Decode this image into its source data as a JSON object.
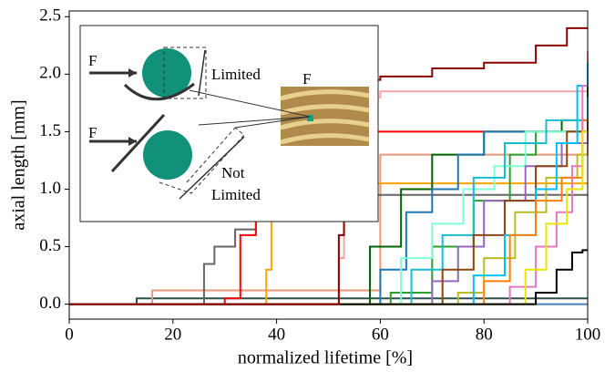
{
  "chart_data": {
    "type": "line",
    "step": "post",
    "x_label": "normalized lifetime [%]",
    "y_label": "axial length [mm]",
    "xlim": [
      0,
      100
    ],
    "ylim": [
      -0.13,
      2.55
    ],
    "xticks": [
      0,
      20,
      40,
      60,
      80,
      100
    ],
    "yticks": [
      {
        "value": 0,
        "label": "0.0"
      },
      {
        "value": 0.5,
        "label": "0.5"
      },
      {
        "value": 1,
        "label": "1.0"
      },
      {
        "value": 1.5,
        "label": "1.5"
      },
      {
        "value": 2,
        "label": "2.0"
      },
      {
        "value": 2.5,
        "label": "2.5"
      }
    ],
    "series": [
      {
        "color": "#4682b4",
        "x": [
          0,
          66,
          100
        ],
        "values": [
          0,
          0,
          0
        ]
      },
      {
        "color": "#2f4f4f",
        "x": [
          0,
          13,
          14,
          60,
          100
        ],
        "values": [
          0,
          0.05,
          0.05,
          0.05,
          0.05
        ]
      },
      {
        "color": "#e9967a",
        "x": [
          0,
          16,
          17,
          52,
          60,
          100
        ],
        "values": [
          0,
          0.12,
          0.12,
          0.12,
          1.3,
          1.4
        ]
      },
      {
        "color": "#666666",
        "x": [
          0,
          26,
          28,
          32,
          36,
          40,
          50,
          60,
          100
        ],
        "values": [
          0,
          0.35,
          0.5,
          0.65,
          0.8,
          0.93,
          0.95,
          0.95,
          0.95
        ]
      },
      {
        "color": "#ff0000",
        "x": [
          0,
          30,
          33,
          36,
          38,
          40,
          100
        ],
        "values": [
          0,
          0.05,
          0.6,
          1.2,
          1.4,
          1.5,
          1.5
        ]
      },
      {
        "color": "#ffa500",
        "x": [
          0,
          38,
          39,
          40,
          45,
          50,
          100
        ],
        "values": [
          0,
          0.3,
          0.8,
          0.85,
          1.0,
          1.05,
          1.05
        ]
      },
      {
        "color": "#f4a6a6",
        "x": [
          0,
          52,
          53,
          55,
          57,
          60,
          100
        ],
        "values": [
          0,
          0.4,
          1.3,
          1.7,
          1.8,
          1.85,
          2.2
        ]
      },
      {
        "color": "#006400",
        "x": [
          0,
          58,
          64,
          70,
          80,
          95,
          100
        ],
        "values": [
          0,
          0.5,
          1.0,
          1.3,
          1.5,
          1.6,
          2.0
        ]
      },
      {
        "color": "#1f77b4",
        "x": [
          0,
          60,
          65,
          70,
          75,
          80,
          100
        ],
        "values": [
          0,
          0.3,
          0.8,
          1.0,
          1.3,
          1.5,
          1.6
        ]
      },
      {
        "color": "#2ca02c",
        "x": [
          0,
          62,
          70,
          78,
          85,
          90,
          100
        ],
        "values": [
          0,
          0.1,
          0.5,
          0.9,
          1.3,
          1.5,
          1.7
        ]
      },
      {
        "color": "#7fffd4",
        "x": [
          0,
          64,
          70,
          76,
          82,
          88,
          100
        ],
        "values": [
          0,
          0.4,
          0.7,
          1.0,
          1.2,
          1.5,
          1.7
        ]
      },
      {
        "color": "#17becf",
        "x": [
          0,
          66,
          72,
          78,
          84,
          92,
          100
        ],
        "values": [
          0,
          0.3,
          0.6,
          1.1,
          1.4,
          1.6,
          1.8
        ]
      },
      {
        "color": "#9467bd",
        "x": [
          0,
          70,
          75,
          80,
          88,
          95,
          100
        ],
        "values": [
          0,
          0.2,
          0.5,
          0.9,
          1.2,
          1.4,
          1.5
        ]
      },
      {
        "color": "#8b4513",
        "x": [
          0,
          72,
          78,
          84,
          90,
          96,
          100
        ],
        "values": [
          0,
          0.3,
          0.6,
          0.9,
          1.2,
          1.5,
          1.6
        ]
      },
      {
        "color": "#bcbd22",
        "x": [
          0,
          75,
          80,
          86,
          92,
          98,
          100
        ],
        "values": [
          0,
          0.1,
          0.4,
          0.8,
          1.1,
          1.3,
          1.3
        ]
      },
      {
        "color": "#00bfff",
        "x": [
          0,
          78,
          84,
          90,
          94,
          98,
          100
        ],
        "values": [
          0,
          0.25,
          0.6,
          1.0,
          1.4,
          1.9,
          2.1
        ]
      },
      {
        "color": "#ff7f0e",
        "x": [
          0,
          80,
          85,
          90,
          95,
          99,
          100
        ],
        "values": [
          0,
          0.2,
          0.6,
          0.9,
          1.1,
          1.6,
          1.6
        ]
      },
      {
        "color": "#e377c2",
        "x": [
          0,
          85,
          90,
          94,
          97,
          99,
          100
        ],
        "values": [
          0,
          0.15,
          0.5,
          0.8,
          1.2,
          1.9,
          1.9
        ]
      },
      {
        "color": "#e6e600",
        "x": [
          0,
          88,
          92,
          96,
          99,
          100
        ],
        "values": [
          0,
          0.3,
          0.7,
          1.0,
          1.5,
          1.5
        ]
      },
      {
        "color": "#000000",
        "x": [
          0,
          90,
          94,
          97,
          99,
          100
        ],
        "values": [
          0,
          0.1,
          0.3,
          0.45,
          0.47,
          0.47
        ]
      },
      {
        "color": "#8b0000",
        "x": [
          0,
          52,
          53,
          54,
          55,
          60,
          70,
          80,
          90,
          96,
          100
        ],
        "values": [
          0,
          0.6,
          1.4,
          1.8,
          1.95,
          1.98,
          2.05,
          2.1,
          2.25,
          2.4,
          2.4
        ]
      }
    ]
  },
  "inset": {
    "force_top": "F",
    "limited": "Limited",
    "photo_force": "F",
    "force_bottom": "F",
    "not": "Not",
    "not_limited": "Limited"
  }
}
